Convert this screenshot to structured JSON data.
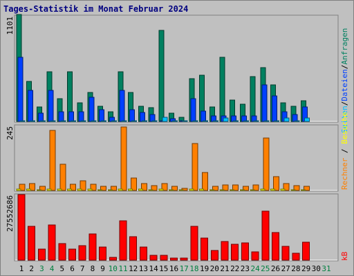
{
  "title": "Tages-Statistik im Monat Februar 2024",
  "colors": {
    "background": "#c0c0c0",
    "title": "#000080",
    "anfragen": "#008060",
    "dateien": "#0040ff",
    "seiten": "#00c0ff",
    "besuche": "#ffff00",
    "rechner": "#ff8000",
    "kb": "#ff0000",
    "weekend_label": "#008040"
  },
  "chart_data": [
    {
      "type": "bar",
      "panel": "requests",
      "ymax_label": "1101",
      "ylim": [
        0,
        1101
      ],
      "legend": [
        "Anfragen",
        "Dateien",
        "Seiten"
      ],
      "categories": [
        "1",
        "2",
        "3",
        "4",
        "5",
        "6",
        "7",
        "8",
        "9",
        "10",
        "11",
        "12",
        "13",
        "14",
        "15",
        "16",
        "17",
        "18",
        "19",
        "20",
        "21",
        "22",
        "23",
        "24",
        "25",
        "26",
        "27",
        "28",
        "29",
        "30",
        "31"
      ],
      "series": [
        {
          "name": "Anfragen",
          "values": [
            1101,
            412,
            146,
            509,
            232,
            509,
            195,
            300,
            157,
            101,
            509,
            300,
            157,
            139,
            937,
            82,
            45,
            441,
            479,
            146,
            659,
            221,
            177,
            465,
            554,
            374,
            195,
            157,
            213,
            0,
            0
          ]
        },
        {
          "name": "Dateien",
          "values": [
            659,
            322,
            82,
            322,
            101,
            101,
            101,
            251,
            119,
            45,
            322,
            120,
            89,
            70,
            10,
            25,
            10,
            232,
            106,
            60,
            60,
            60,
            60,
            60,
            374,
            263,
            100,
            70,
            150,
            0,
            0
          ]
        },
        {
          "name": "Seiten",
          "values": [
            10,
            10,
            10,
            10,
            10,
            10,
            10,
            10,
            10,
            10,
            10,
            10,
            10,
            10,
            45,
            10,
            10,
            10,
            10,
            10,
            37,
            10,
            10,
            10,
            10,
            10,
            37,
            10,
            37,
            0,
            0
          ]
        }
      ]
    },
    {
      "type": "bar",
      "panel": "visits",
      "ymax_label": "245",
      "ylim": [
        0,
        245
      ],
      "legend": [
        "Rechner",
        "Besuche"
      ],
      "categories": [
        "1",
        "2",
        "3",
        "4",
        "5",
        "6",
        "7",
        "8",
        "9",
        "10",
        "11",
        "12",
        "13",
        "14",
        "15",
        "16",
        "17",
        "18",
        "19",
        "20",
        "21",
        "22",
        "23",
        "24",
        "25",
        "26",
        "27",
        "28",
        "29",
        "30",
        "31"
      ],
      "series": [
        {
          "name": "Rechner",
          "values": [
            25,
            27,
            17,
            232,
            101,
            25,
            37,
            25,
            17,
            17,
            245,
            49,
            27,
            19,
            27,
            17,
            8,
            182,
            69,
            17,
            21,
            21,
            17,
            21,
            203,
            53,
            27,
            19,
            17,
            0,
            0
          ]
        },
        {
          "name": "Besuche",
          "values": [
            4,
            4,
            3,
            5,
            4,
            4,
            4,
            4,
            3,
            3,
            5,
            4,
            4,
            3,
            4,
            3,
            2,
            5,
            4,
            3,
            3,
            3,
            3,
            3,
            5,
            4,
            4,
            3,
            3,
            0,
            0
          ]
        }
      ]
    },
    {
      "type": "bar",
      "panel": "kb",
      "ymax_label": "27552686",
      "ylim": [
        0,
        27552686
      ],
      "legend": [
        "kB"
      ],
      "categories": [
        "1",
        "2",
        "3",
        "4",
        "5",
        "6",
        "7",
        "8",
        "9",
        "10",
        "11",
        "12",
        "13",
        "14",
        "15",
        "16",
        "17",
        "18",
        "19",
        "20",
        "21",
        "22",
        "23",
        "24",
        "25",
        "26",
        "27",
        "28",
        "29",
        "30",
        "31"
      ],
      "series": [
        {
          "name": "kB",
          "values": [
            27552686,
            14250000,
            4630000,
            14750000,
            6890000,
            4630000,
            6170000,
            10920000,
            5460000,
            1190000,
            16410000,
            9970000,
            5460000,
            2140000,
            2140000,
            950000,
            950000,
            14250000,
            9260000,
            4160000,
            7840000,
            6650000,
            7130000,
            3560000,
            20670000,
            11640000,
            5940000,
            2850000,
            7600000,
            0,
            0
          ]
        }
      ]
    }
  ],
  "weekend_days": [
    "3",
    "4",
    "10",
    "11",
    "17",
    "18",
    "24",
    "25",
    "31"
  ]
}
